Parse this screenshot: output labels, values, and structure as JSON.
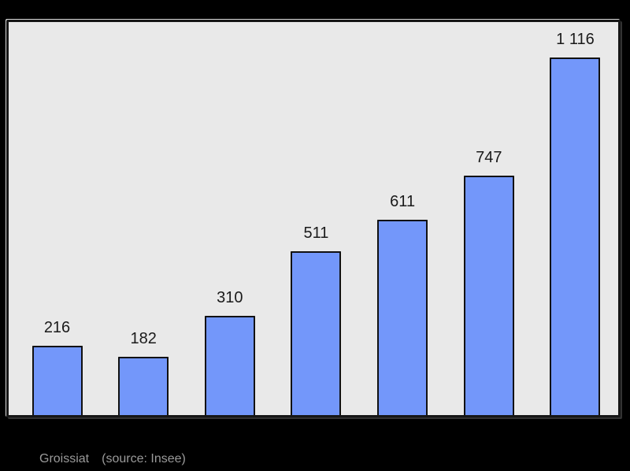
{
  "page": {
    "background": "#000000"
  },
  "caption": {
    "commune": "Groissiat",
    "source": "(source: Insee)",
    "color": "#9a9a9a"
  },
  "chart_data": {
    "type": "bar",
    "values": [
      216,
      182,
      310,
      511,
      611,
      747,
      1116
    ],
    "data_labels": [
      "216",
      "182",
      "310",
      "511",
      "611",
      "747",
      "1 116"
    ],
    "categories": [
      "",
      "",
      "",
      "",
      "",
      "",
      ""
    ],
    "title": "",
    "xlabel": "",
    "ylabel": "",
    "ylim": [
      0,
      1230
    ],
    "grid": false,
    "legend": false,
    "colors": {
      "bar_fill": "#7397fa",
      "bar_border": "#111111",
      "plot_background": "#e9e9e9",
      "frame_border": "#161616",
      "data_label_text": "#1a1a1a",
      "outer_background": "#000000"
    }
  }
}
